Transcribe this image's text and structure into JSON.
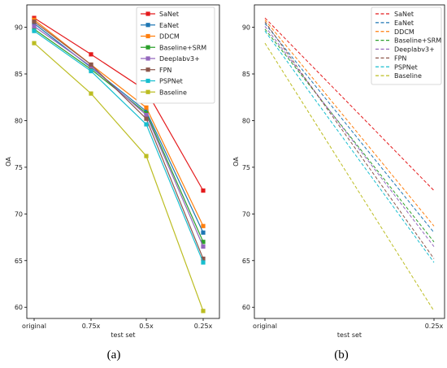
{
  "captions": [
    "(a)",
    "(b)"
  ],
  "chart_data": [
    {
      "type": "line",
      "xlabel": "test set",
      "ylabel": "OA",
      "categories": [
        "original",
        "0.75x",
        "0.5x",
        "0.25x"
      ],
      "ylim": [
        58.8,
        92.4
      ],
      "yticks": [
        60,
        65,
        70,
        75,
        80,
        85,
        90
      ],
      "grid": false,
      "legend": "top-right",
      "markers": true,
      "series": [
        {
          "name": "SaNet",
          "color": "#e41a1c",
          "values": [
            91.0,
            87.1,
            83.2,
            72.5
          ]
        },
        {
          "name": "EaNet",
          "color": "#1f77b4",
          "values": [
            90.4,
            85.7,
            81.0,
            68.0
          ]
        },
        {
          "name": "DDCM",
          "color": "#ff7f0e",
          "values": [
            90.8,
            86.0,
            81.4,
            68.7
          ]
        },
        {
          "name": "Baseline+SRM",
          "color": "#2ca02c",
          "values": [
            89.8,
            85.5,
            80.8,
            67.0
          ]
        },
        {
          "name": "Deeplabv3+",
          "color": "#9467bd",
          "values": [
            90.1,
            85.8,
            80.6,
            66.5
          ]
        },
        {
          "name": "FPN",
          "color": "#8c564b",
          "values": [
            90.6,
            86.0,
            80.2,
            65.2
          ]
        },
        {
          "name": "PSPNet",
          "color": "#17becf",
          "values": [
            89.6,
            85.3,
            79.6,
            64.8
          ]
        },
        {
          "name": "Baseline",
          "color": "#bcbd22",
          "values": [
            88.3,
            82.9,
            76.2,
            59.6
          ]
        }
      ]
    },
    {
      "type": "line",
      "xlabel": "test set",
      "ylabel": "OA",
      "categories": [
        "original",
        "0.25x"
      ],
      "ylim": [
        58.8,
        92.4
      ],
      "yticks": [
        60,
        65,
        70,
        75,
        80,
        85,
        90
      ],
      "grid": false,
      "legend": "top-right",
      "line_style": "dashed",
      "series": [
        {
          "name": "SaNet",
          "color": "#e41a1c",
          "values": [
            91.0,
            72.5
          ]
        },
        {
          "name": "EaNet",
          "color": "#1f77b4",
          "values": [
            90.4,
            68.0
          ]
        },
        {
          "name": "DDCM",
          "color": "#ff7f0e",
          "values": [
            90.8,
            68.7
          ]
        },
        {
          "name": "Baseline+SRM",
          "color": "#2ca02c",
          "values": [
            89.8,
            67.0
          ]
        },
        {
          "name": "Deeplabv3+",
          "color": "#9467bd",
          "values": [
            90.1,
            66.5
          ]
        },
        {
          "name": "FPN",
          "color": "#8c564b",
          "values": [
            90.6,
            65.2
          ]
        },
        {
          "name": "PSPNet",
          "color": "#17becf",
          "values": [
            89.6,
            64.8
          ]
        },
        {
          "name": "Baseline",
          "color": "#bcbd22",
          "values": [
            88.3,
            59.6
          ]
        }
      ]
    }
  ]
}
